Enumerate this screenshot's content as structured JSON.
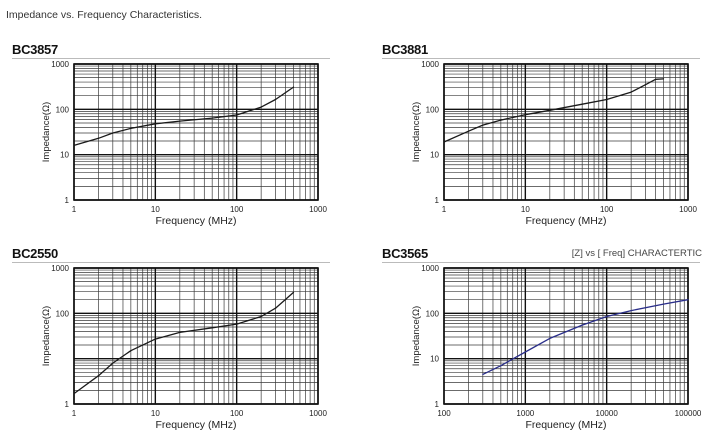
{
  "page": {
    "title": "Impedance vs. Frequency Characteristics."
  },
  "chart_data": [
    {
      "type": "line",
      "title": "BC3857",
      "subtitle": "",
      "xlabel": "Frequency (MHz)",
      "ylabel": "Impedance(Ω)",
      "xscale": "log",
      "yscale": "log",
      "xlim": [
        1,
        1000
      ],
      "ylim": [
        1,
        1000
      ],
      "xticks": [
        1,
        10,
        100,
        1000
      ],
      "xtick_labels": [
        "1",
        "10",
        "100",
        "1000"
      ],
      "yticks": [
        1,
        10,
        100,
        1000
      ],
      "ytick_labels": [
        "1",
        "10",
        "100",
        "1000"
      ],
      "grid": true,
      "series": [
        {
          "color": "#1a1a1a",
          "x": [
            1,
            2,
            3,
            5,
            10,
            20,
            50,
            100,
            200,
            300,
            500
          ],
          "y": [
            16,
            23,
            30,
            38,
            48,
            55,
            64,
            75,
            112,
            165,
            310
          ]
        }
      ]
    },
    {
      "type": "line",
      "title": "BC3881",
      "subtitle": "",
      "xlabel": "Frequency (MHz)",
      "ylabel": "Impedance(Ω)",
      "xscale": "log",
      "yscale": "log",
      "xlim": [
        1,
        1000
      ],
      "ylim": [
        1,
        1000
      ],
      "xticks": [
        1,
        10,
        100,
        1000
      ],
      "xtick_labels": [
        "1",
        "10",
        "100",
        "1000"
      ],
      "yticks": [
        1,
        10,
        100,
        1000
      ],
      "ytick_labels": [
        "1",
        "10",
        "100",
        "1000"
      ],
      "grid": true,
      "series": [
        {
          "color": "#1a1a1a",
          "x": [
            1,
            2,
            3,
            5,
            10,
            20,
            50,
            100,
            200,
            300,
            400,
            500
          ],
          "y": [
            19,
            33,
            45,
            58,
            76,
            95,
            130,
            165,
            240,
            350,
            460,
            470
          ]
        }
      ]
    },
    {
      "type": "line",
      "title": "BC2550",
      "subtitle": "",
      "xlabel": "Frequency (MHz)",
      "ylabel": "Impedance(Ω)",
      "xscale": "log",
      "yscale": "log",
      "xlim": [
        1,
        1000
      ],
      "ylim": [
        1,
        1000
      ],
      "xticks": [
        1,
        10,
        100,
        1000
      ],
      "xtick_labels": [
        "1",
        "10",
        "100",
        "1000"
      ],
      "yticks": [
        1,
        100,
        1000
      ],
      "ytick_labels": [
        "1",
        "100",
        "1000"
      ],
      "grid": true,
      "series": [
        {
          "color": "#1a1a1a",
          "x": [
            1,
            2,
            3,
            5,
            10,
            20,
            50,
            100,
            200,
            300,
            500
          ],
          "y": [
            1.7,
            4.2,
            8,
            15,
            27,
            38,
            48,
            58,
            85,
            130,
            290
          ]
        }
      ]
    },
    {
      "type": "line",
      "title": "BC3565",
      "subtitle": "[Z] vs [ Freq] CHARACTERTIC",
      "xlabel": "Frequency (MHz)",
      "ylabel": "Impedance(Ω)",
      "xscale": "log",
      "yscale": "log",
      "xlim": [
        100,
        100000
      ],
      "ylim": [
        1,
        1000
      ],
      "xticks": [
        100,
        1000,
        10000,
        100000
      ],
      "xtick_labels": [
        "100",
        "1000",
        "10000",
        "100000"
      ],
      "yticks": [
        1,
        10,
        100,
        1000
      ],
      "ytick_labels": [
        "1",
        "10",
        "100",
        "1000"
      ],
      "grid": true,
      "series": [
        {
          "color": "#2a2e8a",
          "x": [
            300,
            500,
            1000,
            2000,
            5000,
            10000,
            20000,
            50000,
            100000
          ],
          "y": [
            4.5,
            7,
            14,
            28,
            55,
            85,
            115,
            160,
            200
          ]
        }
      ]
    }
  ]
}
